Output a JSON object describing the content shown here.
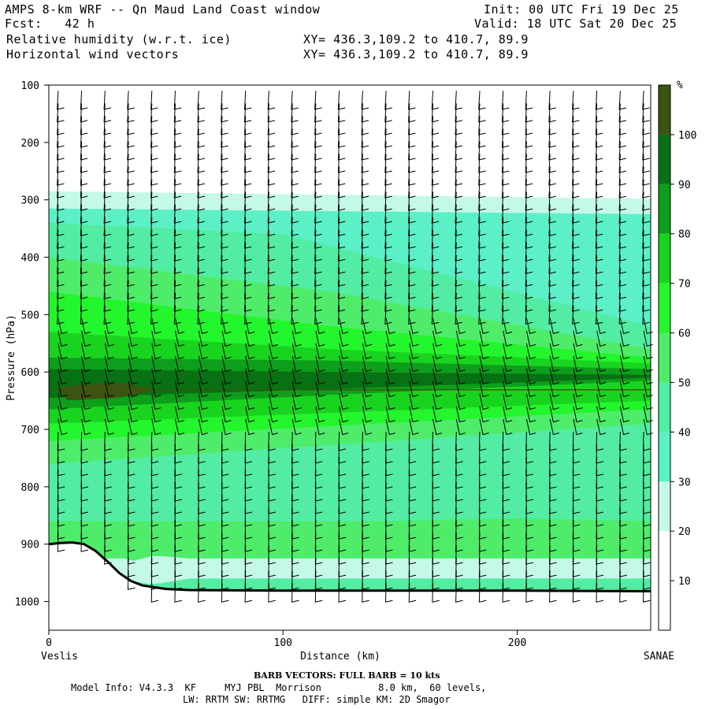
{
  "header": {
    "title": "AMPS 8-km WRF -- Qn Maud Land Coast window",
    "forecast": "Fcst:   42 h",
    "init": "Init: 00 UTC Fri 19 Dec 25",
    "valid": "Valid: 18 UTC Sat 20 Dec 25",
    "field1": "Relative humidity (w.r.t. ice)",
    "field2": "Horizontal wind vectors",
    "xy1": "XY= 436.3,109.2 to 410.7, 89.9",
    "xy2": "XY= 436.3,109.2 to 410.7, 89.9"
  },
  "footer": {
    "barb_note": "BARB VECTORS:  FULL BARB = 10 kts",
    "model_line1": "Model Info: V4.3.3  KF     MYJ PBL  Morrison          8.0 km,  60 levels,",
    "model_line2": "LW: RRTM SW: RRTMG   DIFF: simple KM: 2D Smagor"
  },
  "chart_data": {
    "type": "heatmap",
    "ylabel": "Pressure (hPa)",
    "xlabel": "Distance (km)",
    "x_left_label": "Veslis",
    "x_right_label": "SANAE",
    "ylim": [
      1050,
      100
    ],
    "xlim": [
      0,
      257
    ],
    "y_ticks": [
      100,
      200,
      300,
      400,
      500,
      600,
      700,
      800,
      900,
      1000
    ],
    "x_ticks": [
      0,
      100,
      200
    ],
    "colorbar": {
      "unit": "%",
      "ticks": [
        10,
        20,
        30,
        40,
        50,
        60,
        70,
        80,
        90,
        100
      ],
      "colors": [
        "#ffffff",
        "#ffffff",
        "#ffffff",
        "#c4f9e8",
        "#5cf0c6",
        "#52eda2",
        "#4fec6a",
        "#23f62c",
        "#19d41e",
        "#0d9f1b",
        "#087113",
        "#3d5311"
      ]
    },
    "terrain_hPa": [
      [
        0,
        900
      ],
      [
        5,
        898
      ],
      [
        10,
        897
      ],
      [
        15,
        900
      ],
      [
        20,
        912
      ],
      [
        25,
        930
      ],
      [
        30,
        950
      ],
      [
        35,
        964
      ],
      [
        40,
        972
      ],
      [
        50,
        978
      ],
      [
        60,
        980
      ],
      [
        100,
        981
      ],
      [
        150,
        981
      ],
      [
        200,
        981
      ],
      [
        257,
        982
      ]
    ],
    "rh_bands": [
      {
        "value": 30,
        "top": [
          [
            0,
            285
          ],
          [
            257,
            298
          ]
        ],
        "bottom": [
          [
            0,
            315
          ],
          [
            257,
            325
          ]
        ]
      },
      {
        "value": 50,
        "top": [
          [
            0,
            340
          ],
          [
            100,
            355
          ],
          [
            257,
            520
          ]
        ],
        "bottom": [
          [
            0,
            440
          ],
          [
            257,
            560
          ]
        ]
      },
      {
        "value": 70,
        "top": [
          [
            0,
            440
          ],
          [
            120,
            500
          ],
          [
            257,
            560
          ]
        ],
        "bottom": [
          [
            0,
            560
          ],
          [
            257,
            590
          ]
        ]
      },
      {
        "value": 90,
        "top": [
          [
            0,
            590
          ],
          [
            257,
            600
          ]
        ],
        "bottom": [
          [
            0,
            660
          ],
          [
            257,
            630
          ]
        ]
      },
      {
        "value": 70,
        "top": [
          [
            0,
            660
          ],
          [
            257,
            640
          ]
        ],
        "bottom": [
          [
            0,
            780
          ],
          [
            257,
            690
          ]
        ]
      },
      {
        "value": 50,
        "top": [
          [
            0,
            780
          ],
          [
            257,
            690
          ]
        ],
        "bottom": [
          [
            0,
            980
          ],
          [
            257,
            982
          ]
        ]
      }
    ],
    "wind_barb_note": "FULL BARB = 10 kts"
  }
}
